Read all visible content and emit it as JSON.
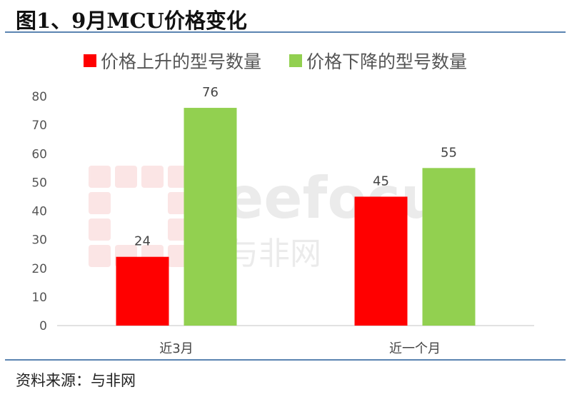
{
  "title": "图1、9月MCU价格变化",
  "source": "资料来源：与非网",
  "watermark": {
    "text": "eefocus",
    "subtext": "与非网"
  },
  "colors": {
    "rise": "#ff0000",
    "fall": "#92d050",
    "rule": "#5b84b1",
    "axis": "#d9d9d9"
  },
  "chart_data": {
    "type": "bar",
    "categories": [
      "近3月",
      "近一个月"
    ],
    "series": [
      {
        "name": "价格上升的型号数量",
        "values": [
          24,
          45
        ]
      },
      {
        "name": "价格下降的型号数量",
        "values": [
          76,
          55
        ]
      }
    ],
    "ylim": [
      0,
      80
    ],
    "yticks": [
      0,
      10,
      20,
      30,
      40,
      50,
      60,
      70,
      80
    ],
    "grid": false,
    "legend": "top",
    "data_labels": true
  }
}
